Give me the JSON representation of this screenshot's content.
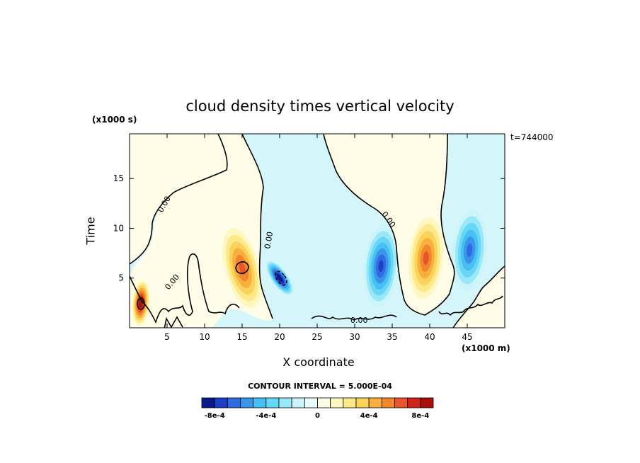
{
  "chart_data": {
    "type": "heatmap",
    "title": "cloud density times vertical velocity",
    "xlabel": "X coordinate",
    "ylabel": "Time",
    "x_unit": "(x1000 m)",
    "y_unit": "(x1000 s)",
    "time_stamp": "t=744000",
    "xlim": [
      0,
      50
    ],
    "ylim": [
      0,
      19.5
    ],
    "x_ticks": [
      5,
      10,
      15,
      20,
      25,
      30,
      35,
      40,
      45
    ],
    "y_ticks": [
      5,
      10,
      15
    ],
    "contour_label": "0.00",
    "contour_interval": "CONTOUR INTERVAL = 5.000E-04",
    "colorbar": {
      "colors": [
        "#0a1a8c",
        "#1f3fc4",
        "#2f6ae0",
        "#3a95ea",
        "#47bff2",
        "#66d8f5",
        "#98e8f7",
        "#cdf4fa",
        "#e8fbfd",
        "#fffde8",
        "#fff7c0",
        "#fde98a",
        "#f9d35a",
        "#f7b03c",
        "#f2862c",
        "#e8552a",
        "#cf2418",
        "#a8100e"
      ],
      "tick_labels": [
        "-8e-4",
        "-4e-4",
        "0",
        "4e-4",
        "8e-4"
      ],
      "tick_values": [
        -0.0008,
        -0.0004,
        0,
        0.0004,
        0.0008
      ],
      "range": [
        -0.0009,
        0.0009
      ]
    },
    "features": [
      {
        "x": 1.5,
        "y": 2.5,
        "value": 0.0009,
        "color": "#e8552a"
      },
      {
        "x": 15,
        "y": 6,
        "value": 0.0006,
        "color": "#f7b03c"
      },
      {
        "x": 20,
        "y": 5,
        "value": -0.0009,
        "color": "#1f3fc4"
      },
      {
        "x": 33.5,
        "y": 6.2,
        "value": -0.0007,
        "color": "#2f6ae0"
      },
      {
        "x": 39.5,
        "y": 7,
        "value": 0.0006,
        "color": "#f7b03c"
      },
      {
        "x": 45.3,
        "y": 7.8,
        "value": -0.0006,
        "color": "#3a95ea"
      }
    ]
  }
}
